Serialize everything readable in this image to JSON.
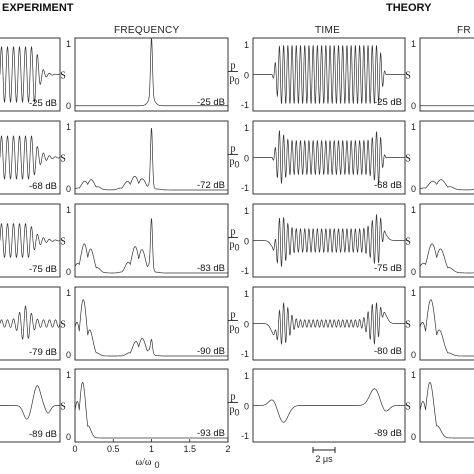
{
  "headers": {
    "experiment": "EXPERIMENT",
    "theory": "THEORY",
    "frequency": "FREQUENCY",
    "time": "TIME",
    "frequency_partial": "FR"
  },
  "ylabels": {
    "spectrum": "S",
    "pressure_num": "p",
    "pressure_den": "p",
    "pressure_sub": "0"
  },
  "xaxis": {
    "omega_label": "ω/ω",
    "omega_sub": "0",
    "omega_ticks": [
      "0",
      "0.5",
      "1",
      "1.5",
      "2"
    ],
    "scalebar": "2 μs"
  },
  "chart_data": [
    {
      "type": "line",
      "panel": "experiment-time",
      "title": "",
      "xlabel": "",
      "ylabel": "",
      "rows": [
        {
          "db": ""
        },
        {
          "db": "-68 dB"
        },
        {
          "db": "-75 dB"
        },
        {
          "db": "-79 dB"
        },
        {
          "db": "-89 dB"
        }
      ],
      "note_first_row": "-25 dB"
    },
    {
      "type": "line",
      "panel": "experiment-frequency",
      "title": "FREQUENCY",
      "xlabel": "ω/ω0",
      "ylabel": "S",
      "xlim": [
        0,
        2
      ],
      "ylim": [
        0,
        1
      ],
      "yticks": [
        "0",
        "1"
      ],
      "rows": [
        {
          "db": "-25 dB"
        },
        {
          "db": "-72 dB"
        },
        {
          "db": "-83 dB"
        },
        {
          "db": "-90 dB"
        },
        {
          "db": "-93 dB"
        }
      ]
    },
    {
      "type": "line",
      "panel": "theory-time",
      "title": "TIME",
      "ylabel": "p/p0",
      "ylim": [
        -1,
        1
      ],
      "yticks": [
        "1",
        "0",
        "-1"
      ],
      "rows": [
        {
          "db": "-25 dB"
        },
        {
          "db": "-68 dB"
        },
        {
          "db": "-75 dB"
        },
        {
          "db": "-80 dB"
        },
        {
          "db": "-89 dB"
        }
      ]
    },
    {
      "type": "line",
      "panel": "theory-frequency",
      "title": "FR",
      "ylabel": "S",
      "yticks": [
        "0",
        "1"
      ],
      "rows": [
        {},
        {},
        {},
        {},
        {}
      ]
    }
  ]
}
